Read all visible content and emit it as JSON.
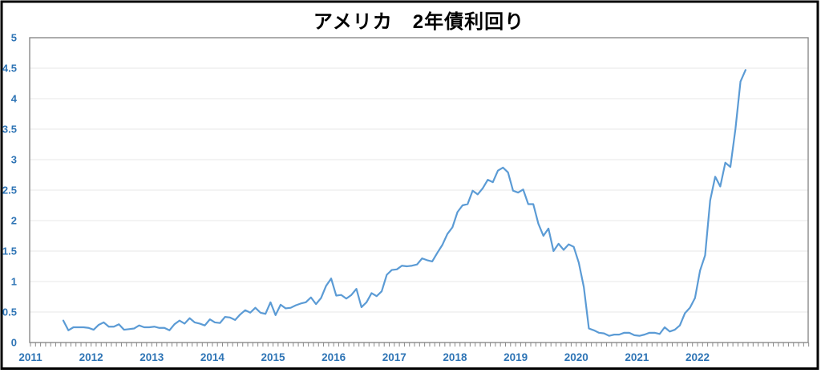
{
  "title": "アメリカ　2年債利回り",
  "window": {
    "background_color": "#ffffff",
    "border_color": "#000000"
  },
  "chart_data": {
    "type": "line",
    "title": "アメリカ　2年債利回り",
    "legend": "none",
    "grid": {
      "horizontal": true,
      "vertical": false,
      "color": "#e7e7e7"
    },
    "frame_color": "#8a8a8a",
    "axis_label_color": "#2E74B5",
    "x_axis": {
      "tick_labels": [
        "2011",
        "2012",
        "2013",
        "2014",
        "2015",
        "2016",
        "2017",
        "2018",
        "2019",
        "2020",
        "2021",
        "2022"
      ],
      "minor_ticks": "monthly",
      "range_years": [
        2011,
        2023.8
      ]
    },
    "y_axis": {
      "tick_labels": [
        "0",
        "0.5",
        "1",
        "1.5",
        "2",
        "2.5",
        "3",
        "3.5",
        "4",
        "4.5",
        "5"
      ],
      "range": [
        0,
        5
      ],
      "step": 0.5
    },
    "series": [
      {
        "color": "#5B9BD5",
        "start": "2011-07",
        "end": "2022-10",
        "frequency": "monthly",
        "values": [
          0.36,
          0.2,
          0.25,
          0.25,
          0.25,
          0.24,
          0.21,
          0.29,
          0.33,
          0.26,
          0.26,
          0.3,
          0.21,
          0.22,
          0.23,
          0.28,
          0.25,
          0.25,
          0.26,
          0.24,
          0.24,
          0.2,
          0.3,
          0.36,
          0.31,
          0.4,
          0.33,
          0.31,
          0.28,
          0.38,
          0.33,
          0.32,
          0.42,
          0.41,
          0.37,
          0.46,
          0.53,
          0.49,
          0.57,
          0.49,
          0.47,
          0.66,
          0.45,
          0.62,
          0.56,
          0.57,
          0.61,
          0.64,
          0.66,
          0.74,
          0.63,
          0.73,
          0.93,
          1.05,
          0.77,
          0.78,
          0.72,
          0.78,
          0.88,
          0.58,
          0.66,
          0.81,
          0.76,
          0.84,
          1.11,
          1.19,
          1.2,
          1.26,
          1.25,
          1.26,
          1.28,
          1.38,
          1.35,
          1.33,
          1.47,
          1.6,
          1.78,
          1.89,
          2.14,
          2.25,
          2.27,
          2.49,
          2.43,
          2.53,
          2.67,
          2.63,
          2.82,
          2.87,
          2.79,
          2.49,
          2.46,
          2.51,
          2.27,
          2.27,
          1.95,
          1.75,
          1.87,
          1.5,
          1.62,
          1.52,
          1.61,
          1.57,
          1.31,
          0.91,
          0.23,
          0.2,
          0.16,
          0.15,
          0.11,
          0.13,
          0.13,
          0.16,
          0.16,
          0.12,
          0.11,
          0.13,
          0.16,
          0.16,
          0.14,
          0.25,
          0.18,
          0.21,
          0.28,
          0.48,
          0.57,
          0.73,
          1.18,
          1.43,
          2.33,
          2.72,
          2.56,
          2.95,
          2.88,
          3.5,
          4.28,
          4.47
        ]
      }
    ]
  }
}
